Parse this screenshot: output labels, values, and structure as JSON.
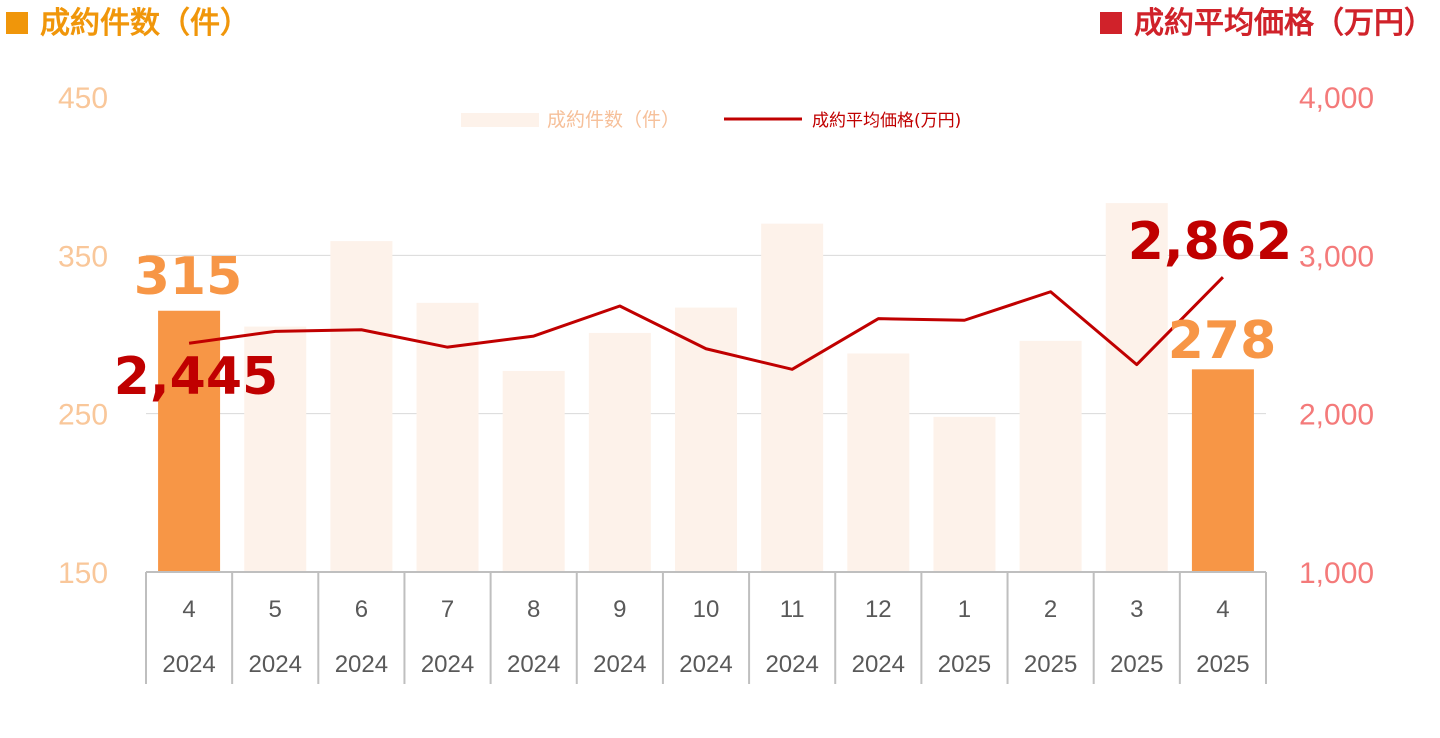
{
  "header": {
    "left_title": "成約件数（件）",
    "right_title": "成約平均価格（万円）"
  },
  "colors": {
    "left_accent": "#f0960a",
    "right_accent": "#d0222a",
    "bar_light": "#fdf2ea",
    "bar_highlight": "#f79646",
    "line": "#c00000",
    "left_axis_text": "#f9c79a",
    "right_axis_text": "#f47a7a",
    "big_count_label": "#f79646",
    "big_price_label": "#c00000",
    "grid": "#d9d9d9",
    "table_border": "#bfbfbf"
  },
  "chart_data": {
    "type": "bar",
    "months": [
      "4",
      "5",
      "6",
      "7",
      "8",
      "9",
      "10",
      "11",
      "12",
      "1",
      "2",
      "3",
      "4"
    ],
    "years": [
      "2024",
      "2024",
      "2024",
      "2024",
      "2024",
      "2024",
      "2024",
      "2024",
      "2024",
      "2025",
      "2025",
      "2025",
      "2025"
    ],
    "series": [
      {
        "name": "成約件数（件）",
        "kind": "bar",
        "axis": "left",
        "values": [
          315,
          305,
          359,
          320,
          277,
          301,
          317,
          370,
          288,
          248,
          296,
          383,
          278
        ],
        "highlight_indices": [
          0,
          12
        ]
      },
      {
        "name": "成約平均価格(万円)",
        "kind": "line",
        "axis": "right",
        "values": [
          2445,
          2520,
          2530,
          2420,
          2490,
          2680,
          2410,
          2280,
          2600,
          2590,
          2770,
          2310,
          2862
        ]
      }
    ],
    "left_axis": {
      "ylim": [
        150,
        450
      ],
      "ticks": [
        "150",
        "250",
        "350",
        "450"
      ],
      "tick_values": [
        150,
        250,
        350,
        450
      ]
    },
    "right_axis": {
      "ylim": [
        1000,
        4000
      ],
      "ticks": [
        "1,000",
        "2,000",
        "3,000",
        "4,000"
      ],
      "tick_values": [
        1000,
        2000,
        3000,
        4000
      ]
    },
    "legend": {
      "position": "top-center",
      "bar_label": "成約件数（件）",
      "line_label": "成約平均価格(万円)"
    },
    "annotations": {
      "first_count": "315",
      "last_count": "278",
      "first_price": "2,445",
      "last_price": "2,862"
    },
    "grid": true
  }
}
